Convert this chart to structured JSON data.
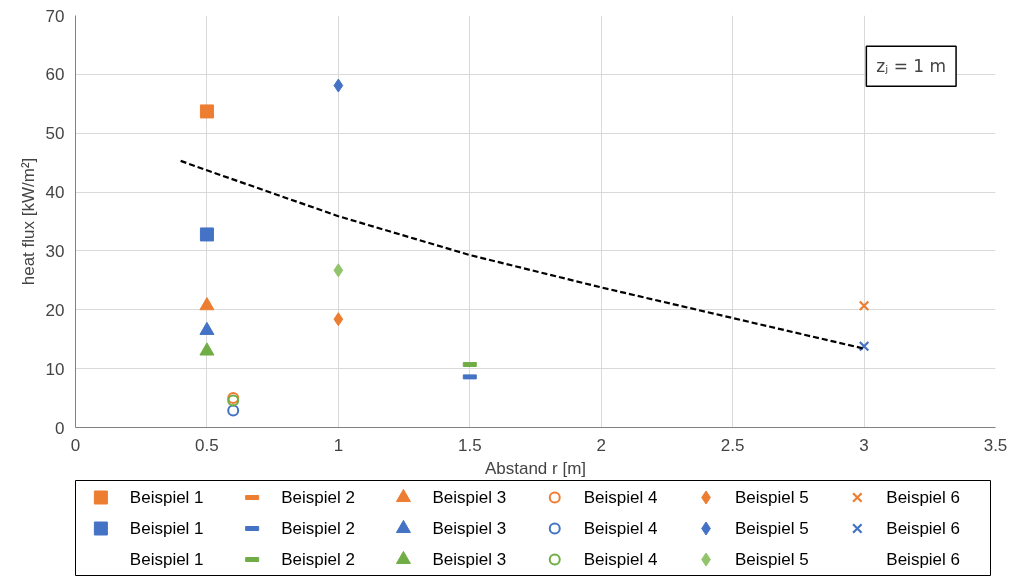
{
  "chart_data": {
    "type": "scatter",
    "xlabel": "Abstand r [m]",
    "ylabel": "heat flux [kW/m²]",
    "xlim": [
      0,
      3.5
    ],
    "xticks": [
      0,
      0.5,
      1,
      1.5,
      2,
      2.5,
      3,
      3.5
    ],
    "ylim": [
      0,
      70
    ],
    "yticks": [
      0,
      10,
      20,
      30,
      40,
      50,
      60,
      70
    ],
    "grid": true,
    "legend": "bottom",
    "annotations": [
      "zⱼ = 1 m"
    ],
    "series": [
      {
        "name": "Beispiel 1",
        "color": "#ed7d31",
        "marker": "square",
        "x": [
          0.5
        ],
        "values": [
          53.7
        ]
      },
      {
        "name": "Beispiel 2",
        "color": "#ed7d31"
      },
      {
        "name": "Beispiel 3",
        "color": "#ed7d31",
        "marker": "triangle",
        "x": [
          0.5
        ],
        "values": [
          20.7
        ]
      },
      {
        "name": "Beispiel 4",
        "color": "#ed7d31",
        "marker": "circle_open",
        "x": [
          0.6
        ],
        "values": [
          5.0
        ]
      },
      {
        "name": "Beispiel 5",
        "color": "#ed7d31",
        "marker": "diamond",
        "x": [
          1
        ],
        "values": [
          18.4
        ]
      },
      {
        "name": "Beispiel 6",
        "color": "#ed7d31",
        "marker": "cross",
        "x": [
          3
        ],
        "values": [
          20.7
        ]
      },
      {
        "name": "Beispiel 1",
        "color": "#4472c4",
        "marker": "square",
        "x": [
          0.5
        ],
        "values": [
          32.8
        ]
      },
      {
        "name": "Beispiel 2",
        "color": "#4472c4",
        "x": [
          1.5
        ],
        "values": [
          8.6
        ]
      },
      {
        "name": "Beispiel 3",
        "color": "#4472c4",
        "marker": "triangle",
        "x": [
          0.5
        ],
        "values": [
          16.5
        ]
      },
      {
        "name": "Beispiel 4",
        "color": "#4472c4",
        "marker": "circle_open",
        "x": [
          0.6
        ],
        "values": [
          2.9
        ]
      },
      {
        "name": "Beispiel 5",
        "color": "#4472c4",
        "marker": "diamond",
        "x": [
          1
        ],
        "values": [
          58.1
        ]
      },
      {
        "name": "Beispiel 6",
        "color": "#4472c4",
        "marker": "cross",
        "x": [
          3
        ],
        "values": [
          13.8
        ]
      },
      {
        "name": "Beispiel 1",
        "marker": "none"
      },
      {
        "name": "Beispiel 2",
        "color": "#70ad47",
        "x": [
          1.5
        ],
        "values": [
          10.7
        ]
      },
      {
        "name": "Beispiel 3",
        "color": "#70ad47",
        "marker": "triangle",
        "x": [
          0.5
        ],
        "values": [
          13.0
        ]
      },
      {
        "name": "Beispiel 4",
        "color": "#70ad47",
        "marker": "circle_open",
        "x": [
          0.6
        ],
        "values": [
          4.6
        ]
      },
      {
        "name": "Beispiel 5",
        "color": "#92c46b",
        "marker": "diamond",
        "x": [
          1
        ],
        "values": [
          26.7
        ]
      },
      {
        "name": "Beispiel 6",
        "marker": "none"
      },
      {
        "type": "line",
        "color": "#000000",
        "line_style": "dashed",
        "marker": "none",
        "x": [
          0.4,
          0.5,
          1,
          1.5,
          2,
          2.5,
          3
        ],
        "values": [
          45.3,
          43.7,
          35.9,
          29.3,
          23.8,
          18.6,
          13.4
        ]
      }
    ]
  }
}
